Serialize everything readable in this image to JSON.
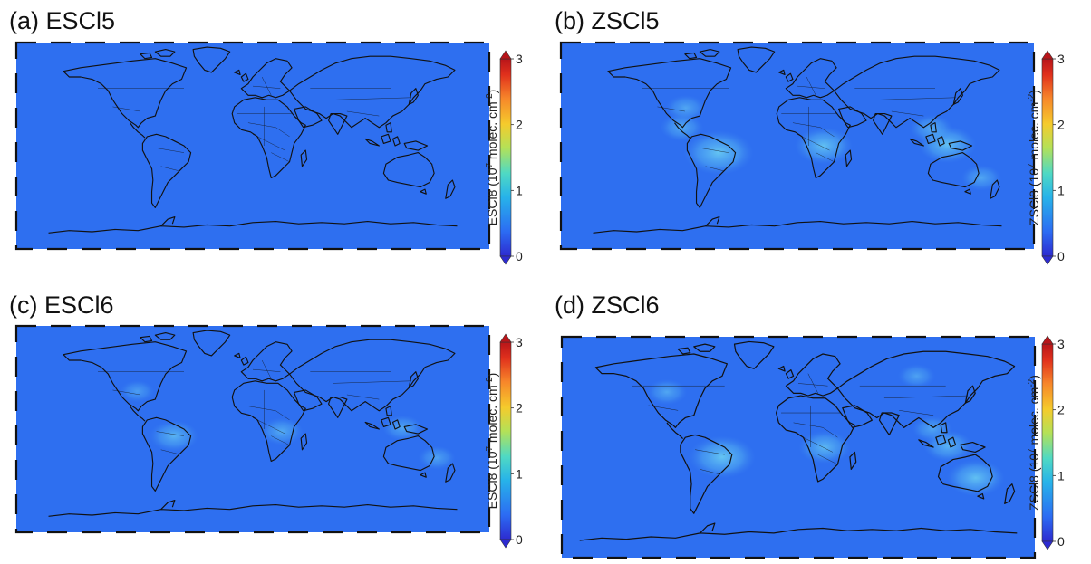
{
  "figure": {
    "panels": [
      {
        "title": "(a) ESCl5",
        "cbar_label": "ESCl8 (10",
        "cbar_exp": "7",
        "cbar_label_tail": " molec. cm",
        "cbar_exp2": "-2",
        "cbar_close": ")"
      },
      {
        "title": "(b) ZSCl5",
        "cbar_label": "ZSCl8 (10",
        "cbar_exp": "7",
        "cbar_label_tail": " molec. cm",
        "cbar_exp2": "-2",
        "cbar_close": ")"
      },
      {
        "title": "(c) ESCl6",
        "cbar_label": "ESCl8 (10",
        "cbar_exp": "7",
        "cbar_label_tail": " molec. cm",
        "cbar_exp2": "-2",
        "cbar_close": ")"
      },
      {
        "title": "(d) ZSCl6",
        "cbar_label": "ZSCl8 (10",
        "cbar_exp": "7",
        "cbar_label_tail": " molec. cm",
        "cbar_exp2": "-2",
        "cbar_close": ")"
      }
    ]
  },
  "chart_data": [
    {
      "type": "heatmap",
      "title": "(a) ESCl5",
      "colorbar": {
        "label": "ESCl8 (10^7 molec. cm^-2)",
        "ticks": [
          "0",
          "1",
          "2",
          "3"
        ],
        "range": [
          0,
          3
        ],
        "colormap": "jet",
        "extend": "both"
      },
      "hotspots": []
    },
    {
      "type": "heatmap",
      "title": "(b) ZSCl5",
      "colorbar": {
        "label": "ZSCl8 (10^7 molec. cm^-2)",
        "ticks": [
          "0",
          "1",
          "2",
          "3"
        ],
        "range": [
          0,
          3
        ],
        "colormap": "jet",
        "extend": "both"
      },
      "hotspots": [
        {
          "region": "Amazon",
          "lon": -60,
          "lat": -6,
          "value": 0.8
        },
        {
          "region": "Central Africa",
          "lon": 20,
          "lat": 0,
          "value": 0.6
        },
        {
          "region": "Borneo",
          "lon": 114,
          "lat": 1,
          "value": 0.6
        },
        {
          "region": "Southeast US",
          "lon": -85,
          "lat": 33,
          "value": 0.3
        },
        {
          "region": "Central America",
          "lon": -88,
          "lat": 16,
          "value": 0.35
        },
        {
          "region": "Indochina",
          "lon": 102,
          "lat": 15,
          "value": 0.35
        },
        {
          "region": "Eastern Australia",
          "lon": 140,
          "lat": -28,
          "value": 0.3
        }
      ]
    },
    {
      "type": "heatmap",
      "title": "(c) ESCl6",
      "colorbar": {
        "label": "ESCl8 (10^7 molec. cm^-2)",
        "ticks": [
          "0",
          "1",
          "2",
          "3"
        ],
        "range": [
          0,
          3
        ],
        "colormap": "jet",
        "extend": "both"
      },
      "hotspots": [
        {
          "region": "Amazon",
          "lon": -60,
          "lat": -6,
          "value": 0.45
        },
        {
          "region": "Central Africa",
          "lon": 22,
          "lat": -2,
          "value": 0.35
        },
        {
          "region": "Borneo",
          "lon": 114,
          "lat": 1,
          "value": 0.3
        },
        {
          "region": "Eastern Australia",
          "lon": 140,
          "lat": -25,
          "value": 0.25
        },
        {
          "region": "Southeast US",
          "lon": -88,
          "lat": 33,
          "value": 0.2
        }
      ]
    },
    {
      "type": "heatmap",
      "title": "(d) ZSCl6",
      "colorbar": {
        "label": "ZSCl8 (10^7 molec. cm^-2)",
        "ticks": [
          "0",
          "1",
          "2",
          "3"
        ],
        "range": [
          0,
          3
        ],
        "colormap": "jet",
        "extend": "both"
      },
      "hotspots": [
        {
          "region": "Amazon",
          "lon": -58,
          "lat": -8,
          "value": 0.75
        },
        {
          "region": "North America",
          "lon": -100,
          "lat": 45,
          "value": 0.3
        },
        {
          "region": "Siberia / North Asia",
          "lon": 90,
          "lat": 58,
          "value": 0.25
        },
        {
          "region": "Central Africa",
          "lon": 20,
          "lat": 0,
          "value": 0.5
        },
        {
          "region": "Australia",
          "lon": 135,
          "lat": -25,
          "value": 0.6
        },
        {
          "region": "Borneo",
          "lon": 114,
          "lat": 1,
          "value": 0.45
        },
        {
          "region": "Indochina",
          "lon": 102,
          "lat": 15,
          "value": 0.3
        }
      ]
    }
  ],
  "colors": {
    "ocean_base": "#2e6ff0",
    "colormap_stops": [
      "#2d2bd0",
      "#2c6cf3",
      "#27b3e9",
      "#4fd9c4",
      "#b4e157",
      "#f5cb2c",
      "#f7862a",
      "#e0301c",
      "#b8151a"
    ],
    "coast": "#111111"
  }
}
